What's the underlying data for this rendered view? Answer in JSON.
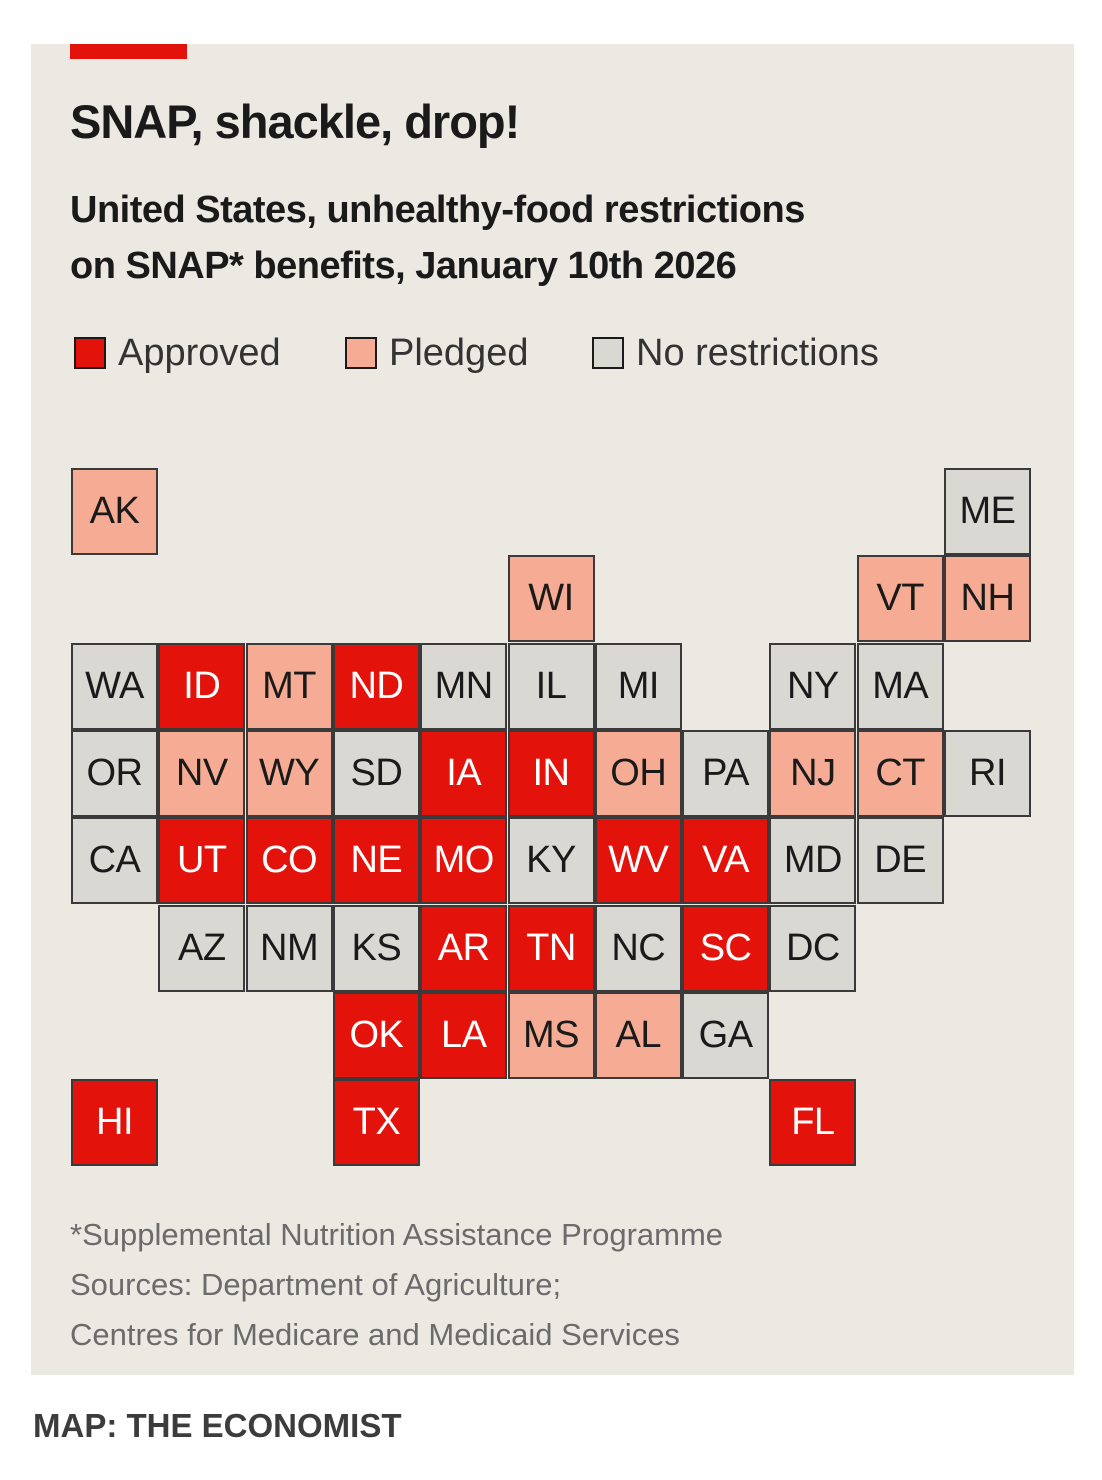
{
  "header": {
    "title": "SNAP, shackle, drop!",
    "subtitle_line1": "United States, unhealthy-food restrictions",
    "subtitle_line2": "on SNAP* benefits, January 10th 2026"
  },
  "legend": [
    {
      "key": "approved",
      "label": "Approved",
      "color": "#e3120b"
    },
    {
      "key": "pledged",
      "label": "Pledged",
      "color": "#f6ac94"
    },
    {
      "key": "none",
      "label": "No restrictions",
      "color": "#d9d8d2"
    }
  ],
  "status_colors": {
    "approved": "#e3120b",
    "pledged": "#f6ac94",
    "none": "#d9d8d2"
  },
  "states": [
    {
      "abbr": "AK",
      "status": "pledged",
      "row": 0,
      "col": 0
    },
    {
      "abbr": "ME",
      "status": "none",
      "row": 0,
      "col": 10
    },
    {
      "abbr": "WI",
      "status": "pledged",
      "row": 1,
      "col": 5
    },
    {
      "abbr": "VT",
      "status": "pledged",
      "row": 1,
      "col": 9
    },
    {
      "abbr": "NH",
      "status": "pledged",
      "row": 1,
      "col": 10
    },
    {
      "abbr": "WA",
      "status": "none",
      "row": 2,
      "col": 0
    },
    {
      "abbr": "ID",
      "status": "approved",
      "row": 2,
      "col": 1
    },
    {
      "abbr": "MT",
      "status": "pledged",
      "row": 2,
      "col": 2
    },
    {
      "abbr": "ND",
      "status": "approved",
      "row": 2,
      "col": 3
    },
    {
      "abbr": "MN",
      "status": "none",
      "row": 2,
      "col": 4
    },
    {
      "abbr": "IL",
      "status": "none",
      "row": 2,
      "col": 5
    },
    {
      "abbr": "MI",
      "status": "none",
      "row": 2,
      "col": 6
    },
    {
      "abbr": "NY",
      "status": "none",
      "row": 2,
      "col": 8
    },
    {
      "abbr": "MA",
      "status": "none",
      "row": 2,
      "col": 9
    },
    {
      "abbr": "OR",
      "status": "none",
      "row": 3,
      "col": 0
    },
    {
      "abbr": "NV",
      "status": "pledged",
      "row": 3,
      "col": 1
    },
    {
      "abbr": "WY",
      "status": "pledged",
      "row": 3,
      "col": 2
    },
    {
      "abbr": "SD",
      "status": "none",
      "row": 3,
      "col": 3
    },
    {
      "abbr": "IA",
      "status": "approved",
      "row": 3,
      "col": 4
    },
    {
      "abbr": "IN",
      "status": "approved",
      "row": 3,
      "col": 5
    },
    {
      "abbr": "OH",
      "status": "pledged",
      "row": 3,
      "col": 6
    },
    {
      "abbr": "PA",
      "status": "none",
      "row": 3,
      "col": 7
    },
    {
      "abbr": "NJ",
      "status": "pledged",
      "row": 3,
      "col": 8
    },
    {
      "abbr": "CT",
      "status": "pledged",
      "row": 3,
      "col": 9
    },
    {
      "abbr": "RI",
      "status": "none",
      "row": 3,
      "col": 10
    },
    {
      "abbr": "CA",
      "status": "none",
      "row": 4,
      "col": 0
    },
    {
      "abbr": "UT",
      "status": "approved",
      "row": 4,
      "col": 1
    },
    {
      "abbr": "CO",
      "status": "approved",
      "row": 4,
      "col": 2
    },
    {
      "abbr": "NE",
      "status": "approved",
      "row": 4,
      "col": 3
    },
    {
      "abbr": "MO",
      "status": "approved",
      "row": 4,
      "col": 4
    },
    {
      "abbr": "KY",
      "status": "none",
      "row": 4,
      "col": 5
    },
    {
      "abbr": "WV",
      "status": "approved",
      "row": 4,
      "col": 6
    },
    {
      "abbr": "VA",
      "status": "approved",
      "row": 4,
      "col": 7
    },
    {
      "abbr": "MD",
      "status": "none",
      "row": 4,
      "col": 8
    },
    {
      "abbr": "DE",
      "status": "none",
      "row": 4,
      "col": 9
    },
    {
      "abbr": "AZ",
      "status": "none",
      "row": 5,
      "col": 1
    },
    {
      "abbr": "NM",
      "status": "none",
      "row": 5,
      "col": 2
    },
    {
      "abbr": "KS",
      "status": "none",
      "row": 5,
      "col": 3
    },
    {
      "abbr": "AR",
      "status": "approved",
      "row": 5,
      "col": 4
    },
    {
      "abbr": "TN",
      "status": "approved",
      "row": 5,
      "col": 5
    },
    {
      "abbr": "NC",
      "status": "none",
      "row": 5,
      "col": 6
    },
    {
      "abbr": "SC",
      "status": "approved",
      "row": 5,
      "col": 7
    },
    {
      "abbr": "DC",
      "status": "none",
      "row": 5,
      "col": 8
    },
    {
      "abbr": "OK",
      "status": "approved",
      "row": 6,
      "col": 3
    },
    {
      "abbr": "LA",
      "status": "approved",
      "row": 6,
      "col": 4
    },
    {
      "abbr": "MS",
      "status": "pledged",
      "row": 6,
      "col": 5
    },
    {
      "abbr": "AL",
      "status": "pledged",
      "row": 6,
      "col": 6
    },
    {
      "abbr": "GA",
      "status": "none",
      "row": 6,
      "col": 7
    },
    {
      "abbr": "HI",
      "status": "approved",
      "row": 7,
      "col": 0
    },
    {
      "abbr": "TX",
      "status": "approved",
      "row": 7,
      "col": 3
    },
    {
      "abbr": "FL",
      "status": "approved",
      "row": 7,
      "col": 8
    }
  ],
  "footnote": {
    "line1": "*Supplemental Nutrition Assistance Programme",
    "line2": "Sources: Department of Agriculture;",
    "line3": "Centres for Medicare and Medicaid Services"
  },
  "credit": "MAP: THE ECONOMIST"
}
